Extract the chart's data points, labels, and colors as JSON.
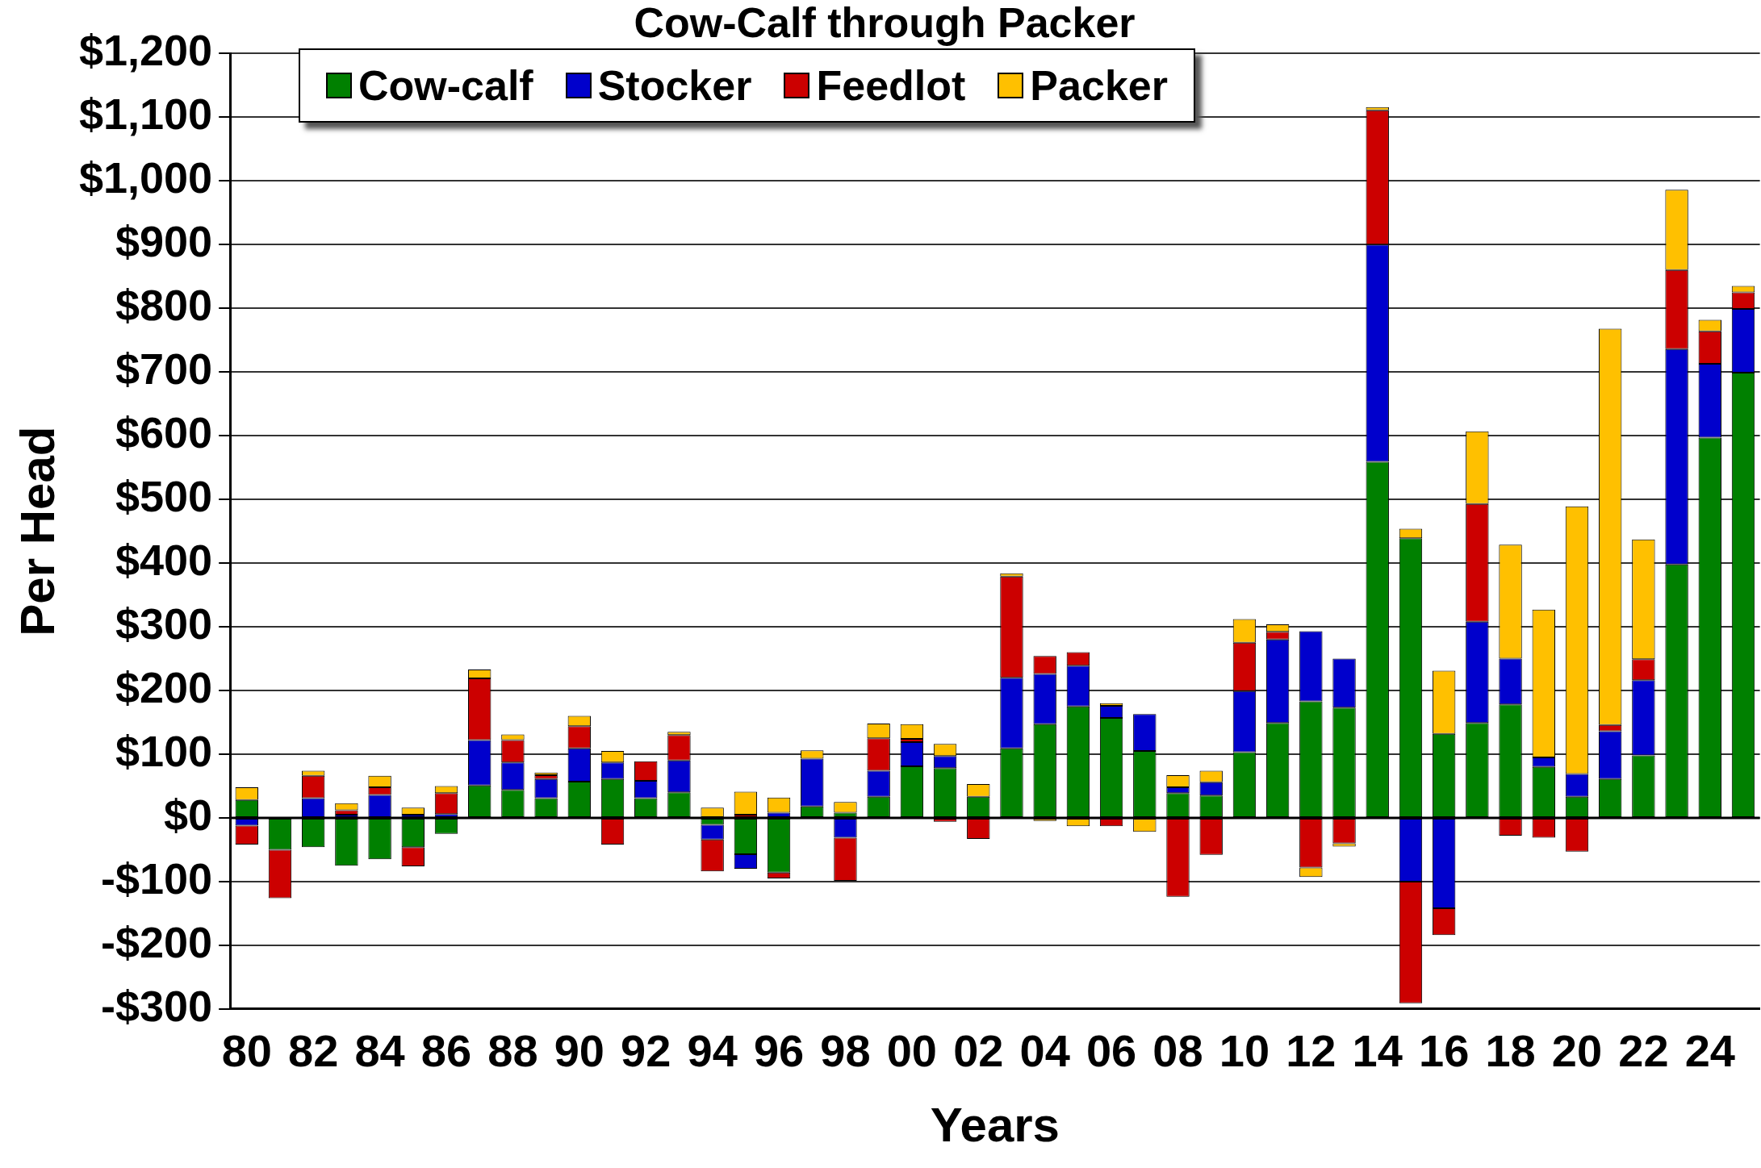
{
  "chart_data": {
    "type": "bar",
    "title": "Cow-Calf through Packer",
    "xlabel": "Years",
    "ylabel": "Per Head",
    "stacked": true,
    "grid": "y",
    "legend": "top left",
    "categories": [
      "80",
      null,
      "82",
      null,
      "84",
      null,
      "86",
      null,
      "88",
      null,
      "90",
      null,
      "92",
      null,
      "94",
      null,
      "96",
      null,
      "98",
      null,
      "00",
      null,
      "02",
      null,
      "04",
      null,
      "06",
      null,
      "08",
      null,
      "10",
      null,
      "12",
      null,
      "14",
      null,
      "16",
      null,
      "18",
      null,
      "20",
      null,
      "22",
      null,
      "24",
      null
    ],
    "ylim": [
      -300,
      1200
    ],
    "yticks": [
      {
        "value": -300,
        "label": "-$300"
      },
      {
        "value": -200,
        "label": "-$200"
      },
      {
        "value": -100,
        "label": "-$100"
      },
      {
        "value": 0,
        "label": "$0"
      },
      {
        "value": 100,
        "label": "$100"
      },
      {
        "value": 200,
        "label": "$200"
      },
      {
        "value": 300,
        "label": "$300"
      },
      {
        "value": 400,
        "label": "$400"
      },
      {
        "value": 500,
        "label": "$500"
      },
      {
        "value": 600,
        "label": "$600"
      },
      {
        "value": 700,
        "label": "$700"
      },
      {
        "value": 800,
        "label": "$800"
      },
      {
        "value": 900,
        "label": "$900"
      },
      {
        "value": 1000,
        "label": "$1,000"
      },
      {
        "value": 1100,
        "label": "$1,100"
      },
      {
        "value": 1200,
        "label": "$1,200"
      }
    ],
    "series": [
      {
        "name": "Cow-calf",
        "color": "#008000",
        "values": [
          28,
          -50,
          -46,
          -75,
          -65,
          -46,
          -25,
          51,
          44,
          31,
          57,
          61,
          31,
          40,
          -11,
          -57,
          -86,
          18,
          8,
          33,
          81,
          78,
          33,
          109,
          147,
          175,
          157,
          105,
          39,
          35,
          103,
          149,
          183,
          173,
          559,
          439,
          132,
          149,
          178,
          80,
          33,
          61,
          98,
          398,
          597,
          699
        ]
      },
      {
        "name": "Stocker",
        "color": "#0000cc",
        "values": [
          -12,
          0,
          31,
          5,
          36,
          5,
          6,
          71,
          43,
          30,
          52,
          26,
          27,
          50,
          -23,
          -23,
          8,
          75,
          -31,
          41,
          38,
          19,
          0,
          111,
          79,
          64,
          19,
          58,
          9,
          21,
          96,
          131,
          110,
          77,
          341,
          -100,
          -142,
          159,
          72,
          15,
          36,
          75,
          118,
          338,
          116,
          100
        ]
      },
      {
        "name": "Feedlot",
        "color": "#cc0000",
        "values": [
          -30,
          -76,
          35,
          7,
          12,
          -30,
          33,
          97,
          35,
          6,
          35,
          -42,
          31,
          40,
          -50,
          5,
          -9,
          0,
          -68,
          51,
          5,
          -6,
          -33,
          159,
          28,
          21,
          -13,
          0,
          -124,
          -58,
          76,
          12,
          -78,
          -40,
          211,
          -191,
          -42,
          185,
          -28,
          -31,
          -53,
          10,
          33,
          124,
          51,
          26
        ]
      },
      {
        "name": "Packer",
        "color": "#ffc000",
        "values": [
          20,
          0,
          8,
          11,
          18,
          11,
          11,
          14,
          9,
          4,
          16,
          18,
          0,
          5,
          16,
          36,
          24,
          13,
          17,
          23,
          23,
          19,
          20,
          5,
          -5,
          -13,
          4,
          -22,
          19,
          18,
          37,
          12,
          -15,
          -5,
          5,
          15,
          99,
          114,
          179,
          232,
          420,
          622,
          188,
          126,
          18,
          10
        ]
      }
    ]
  }
}
